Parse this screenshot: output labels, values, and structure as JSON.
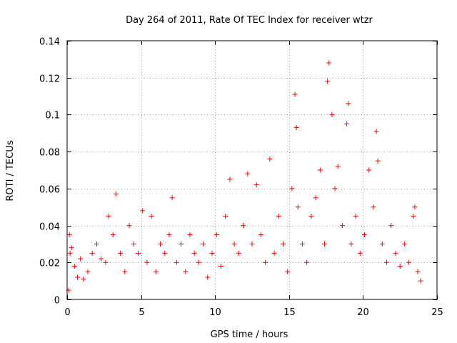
{
  "chart_data": {
    "type": "scatter",
    "title": "Day 264 of 2011, Rate Of TEC Index for receiver wtzr",
    "xlabel": "GPS time / hours",
    "ylabel": "ROTI / TECUs",
    "xlim": [
      0,
      25
    ],
    "ylim": [
      0,
      0.14
    ],
    "xticks": [
      0,
      5,
      10,
      15,
      20,
      25
    ],
    "yticks": [
      0,
      0.02,
      0.04,
      0.06,
      0.08,
      0.1,
      0.12,
      0.14
    ],
    "xtick_labels": [
      "0",
      "5",
      "10",
      "15",
      "20",
      "25"
    ],
    "ytick_labels": [
      "0",
      "0.02",
      "0.04",
      "0.06",
      "0.08",
      "0.1",
      "0.12",
      "0.14"
    ],
    "grid": true,
    "grid_style": "dotted",
    "marker": "+",
    "color": "#ff0000",
    "series": [
      {
        "points": [
          [
            0.1,
            0.005
          ],
          [
            0.15,
            0.035
          ],
          [
            0.2,
            0.025
          ],
          [
            0.3,
            0.028
          ],
          [
            0.5,
            0.018
          ],
          [
            0.7,
            0.012
          ],
          [
            0.9,
            0.022
          ],
          [
            1.1,
            0.011
          ],
          [
            1.4,
            0.015
          ],
          [
            1.7,
            0.025
          ],
          [
            2.0,
            0.03
          ],
          [
            2.3,
            0.022
          ],
          [
            2.6,
            0.02
          ],
          [
            2.8,
            0.045
          ],
          [
            3.1,
            0.035
          ],
          [
            3.3,
            0.057
          ],
          [
            3.6,
            0.025
          ],
          [
            3.9,
            0.015
          ],
          [
            4.2,
            0.04
          ],
          [
            4.5,
            0.03
          ],
          [
            4.8,
            0.025
          ],
          [
            5.1,
            0.048
          ],
          [
            5.4,
            0.02
          ],
          [
            5.7,
            0.045
          ],
          [
            6.0,
            0.015
          ],
          [
            6.3,
            0.03
          ],
          [
            6.6,
            0.025
          ],
          [
            6.9,
            0.035
          ],
          [
            7.1,
            0.055
          ],
          [
            7.4,
            0.02
          ],
          [
            7.7,
            0.03
          ],
          [
            8.0,
            0.015
          ],
          [
            8.3,
            0.035
          ],
          [
            8.6,
            0.025
          ],
          [
            8.9,
            0.02
          ],
          [
            9.2,
            0.03
          ],
          [
            9.5,
            0.012
          ],
          [
            9.8,
            0.025
          ],
          [
            10.1,
            0.035
          ],
          [
            10.4,
            0.018
          ],
          [
            10.7,
            0.045
          ],
          [
            11.0,
            0.065
          ],
          [
            11.3,
            0.03
          ],
          [
            11.6,
            0.025
          ],
          [
            11.9,
            0.04
          ],
          [
            12.2,
            0.068
          ],
          [
            12.5,
            0.03
          ],
          [
            12.8,
            0.062
          ],
          [
            13.1,
            0.035
          ],
          [
            13.4,
            0.02
          ],
          [
            13.7,
            0.076
          ],
          [
            14.0,
            0.025
          ],
          [
            14.3,
            0.045
          ],
          [
            14.6,
            0.03
          ],
          [
            14.9,
            0.015
          ],
          [
            15.2,
            0.06
          ],
          [
            15.4,
            0.111
          ],
          [
            15.5,
            0.093
          ],
          [
            15.6,
            0.05
          ],
          [
            15.9,
            0.03
          ],
          [
            16.2,
            0.02
          ],
          [
            16.5,
            0.045
          ],
          [
            16.8,
            0.055
          ],
          [
            17.1,
            0.07
          ],
          [
            17.4,
            0.03
          ],
          [
            17.6,
            0.118
          ],
          [
            17.7,
            0.128
          ],
          [
            17.9,
            0.1
          ],
          [
            18.1,
            0.06
          ],
          [
            18.3,
            0.072
          ],
          [
            18.6,
            0.04
          ],
          [
            18.9,
            0.095
          ],
          [
            19.0,
            0.106
          ],
          [
            19.2,
            0.03
          ],
          [
            19.5,
            0.045
          ],
          [
            19.8,
            0.025
          ],
          [
            20.1,
            0.035
          ],
          [
            20.4,
            0.07
          ],
          [
            20.7,
            0.05
          ],
          [
            20.9,
            0.091
          ],
          [
            21.0,
            0.075
          ],
          [
            21.3,
            0.03
          ],
          [
            21.6,
            0.02
          ],
          [
            21.9,
            0.04
          ],
          [
            22.2,
            0.025
          ],
          [
            22.5,
            0.018
          ],
          [
            22.8,
            0.03
          ],
          [
            23.1,
            0.02
          ],
          [
            23.4,
            0.045
          ],
          [
            23.5,
            0.05
          ],
          [
            23.7,
            0.015
          ],
          [
            23.9,
            0.01
          ]
        ]
      }
    ]
  }
}
